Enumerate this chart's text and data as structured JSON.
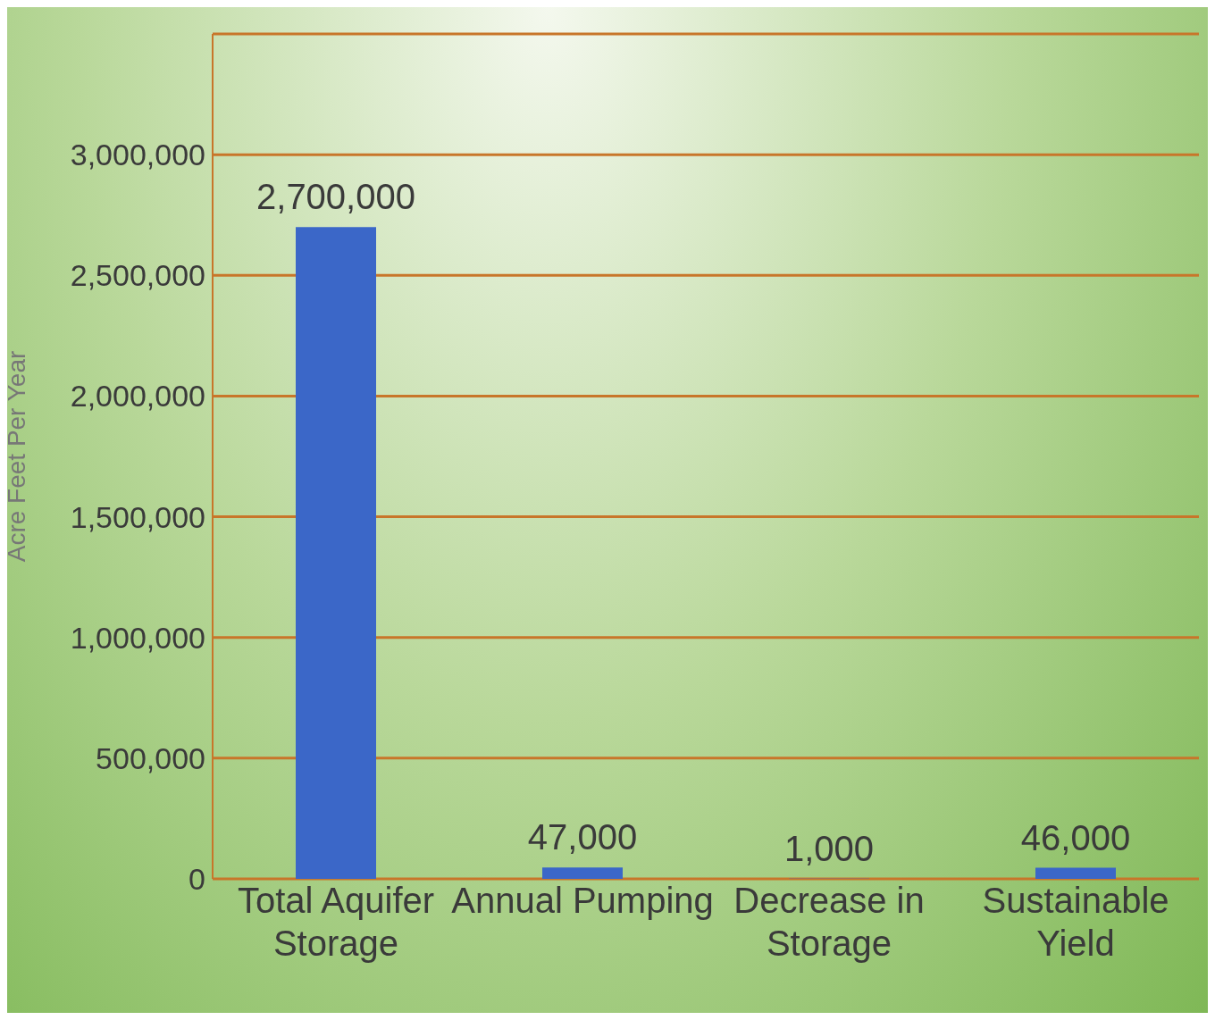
{
  "chart_data": {
    "type": "bar",
    "ylabel": "Acre Feet Per Year",
    "categories": [
      "Total Aquifer Storage",
      "Annual Pumping",
      "Decrease in Storage",
      "Sustainable Yield"
    ],
    "values": [
      2700000,
      47000,
      1000,
      46000
    ],
    "color": "#3b67c8",
    "value_labels": [
      "2,700,000",
      "47,000",
      "1,000",
      "46,000"
    ],
    "ylim": [
      0,
      3500000
    ],
    "yticks": [
      0,
      {
        "value": 500000,
        "label": "500,000"
      },
      {
        "value": 1000000,
        "label": "1,000,000"
      },
      {
        "value": 1500000,
        "label": "1,500,000"
      },
      {
        "value": 2000000,
        "label": "2,000,000"
      },
      {
        "value": 2500000,
        "label": "2,500,000"
      },
      {
        "value": 3000000,
        "label": "3,000,000"
      },
      {
        "value": 3500000,
        "label": null
      }
    ],
    "grid": "y"
  }
}
